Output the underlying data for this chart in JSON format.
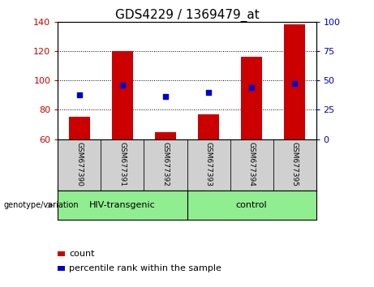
{
  "title": "GDS4229 / 1369479_at",
  "samples": [
    "GSM677390",
    "GSM677391",
    "GSM677392",
    "GSM677393",
    "GSM677394",
    "GSM677395"
  ],
  "bar_values": [
    75,
    120,
    65,
    77,
    116,
    138
  ],
  "bar_base": 60,
  "bar_color": "#cc0000",
  "dot_values_left": [
    90,
    97,
    89,
    92,
    95,
    98
  ],
  "dot_color": "#0000cc",
  "ylim_left": [
    60,
    140
  ],
  "ylim_right": [
    0,
    100
  ],
  "yticks_left": [
    60,
    80,
    100,
    120,
    140
  ],
  "yticks_right": [
    0,
    25,
    50,
    75,
    100
  ],
  "group_hiv_label": "HIV-transgenic",
  "group_ctrl_label": "control",
  "group_color": "#90ee90",
  "genotype_label": "genotype/variation",
  "legend_count_label": "count",
  "legend_pct_label": "percentile rank within the sample",
  "tick_area_color": "#d0d0d0",
  "bar_width": 0.5,
  "title_fontsize": 11
}
